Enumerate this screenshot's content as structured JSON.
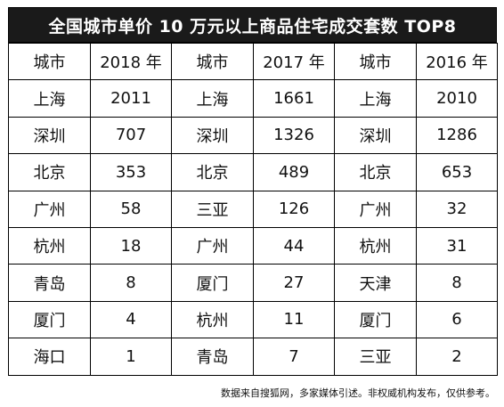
{
  "title": "全国城市单价 10 万元以上商品住宅成交套数 TOP8",
  "headers": [
    "城市",
    "2018 年",
    "城市",
    "2017 年",
    "城市",
    "2016 年"
  ],
  "rows": [
    [
      "上海",
      "2011",
      "上海",
      "1661",
      "上海",
      "2010"
    ],
    [
      "深圳",
      "707",
      "深圳",
      "1326",
      "深圳",
      "1286"
    ],
    [
      "北京",
      "353",
      "北京",
      "489",
      "北京",
      "653"
    ],
    [
      "广州",
      "58",
      "三亚",
      "126",
      "广州",
      "32"
    ],
    [
      "杭州",
      "18",
      "广州",
      "44",
      "杭州",
      "31"
    ],
    [
      "青岛",
      "8",
      "厦门",
      "27",
      "天津",
      "8"
    ],
    [
      "厦门",
      "4",
      "杭州",
      "11",
      "厦门",
      "6"
    ],
    [
      "海口",
      "1",
      "青岛",
      "7",
      "三亚",
      "2"
    ]
  ],
  "footnote": "数据来自搜狐网，多家媒体引述。非权威机构发布，仅供参考。"
}
